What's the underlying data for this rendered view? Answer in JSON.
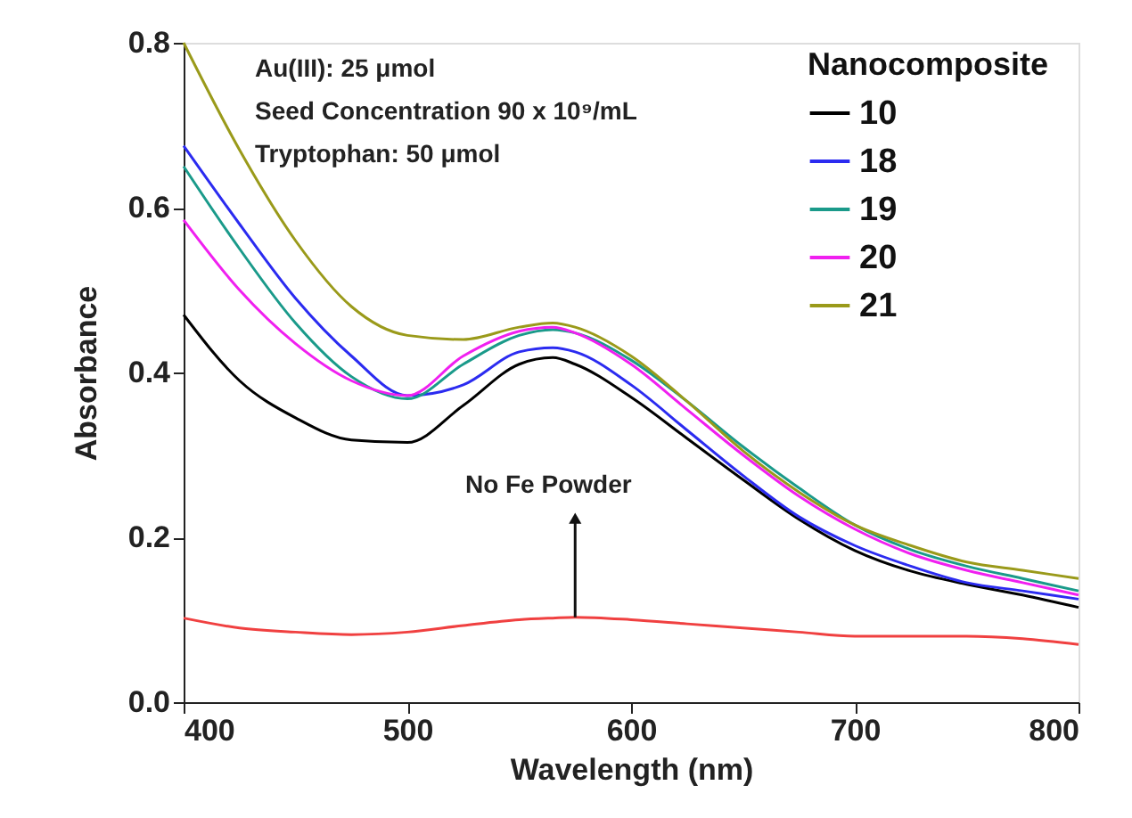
{
  "chart_data": {
    "type": "line",
    "xlabel": "Wavelength (nm)",
    "ylabel": "Absorbance",
    "legend_title": "Nanocomposite",
    "x": [
      400,
      425,
      450,
      475,
      500,
      525,
      550,
      565,
      575,
      600,
      625,
      650,
      675,
      700,
      725,
      750,
      775,
      800
    ],
    "series": [
      {
        "name": "10",
        "color": "#000000",
        "values": [
          0.47,
          0.39,
          0.345,
          0.318,
          0.315,
          0.36,
          0.41,
          0.418,
          0.41,
          0.37,
          0.32,
          0.27,
          0.222,
          0.184,
          0.159,
          0.143,
          0.13,
          0.115
        ]
      },
      {
        "name": "18",
        "color": "#2b2bf0",
        "values": [
          0.675,
          0.58,
          0.49,
          0.42,
          0.372,
          0.385,
          0.425,
          0.43,
          0.425,
          0.385,
          0.33,
          0.275,
          0.225,
          0.19,
          0.165,
          0.145,
          0.135,
          0.125
        ]
      },
      {
        "name": "19",
        "color": "#1a9a8a",
        "values": [
          0.65,
          0.55,
          0.46,
          0.395,
          0.368,
          0.41,
          0.445,
          0.452,
          0.448,
          0.415,
          0.365,
          0.31,
          0.26,
          0.215,
          0.185,
          0.165,
          0.15,
          0.135
        ]
      },
      {
        "name": "20",
        "color": "#f020f0",
        "values": [
          0.585,
          0.5,
          0.435,
          0.39,
          0.372,
          0.42,
          0.45,
          0.455,
          0.448,
          0.41,
          0.355,
          0.3,
          0.25,
          0.21,
          0.18,
          0.16,
          0.145,
          0.13
        ]
      },
      {
        "name": "21",
        "color": "#9a9a1a",
        "values": [
          0.8,
          0.67,
          0.56,
          0.48,
          0.445,
          0.44,
          0.455,
          0.46,
          0.455,
          0.42,
          0.365,
          0.305,
          0.255,
          0.215,
          0.19,
          0.17,
          0.16,
          0.15
        ]
      },
      {
        "color": "#f04040",
        "values": [
          0.102,
          0.09,
          0.085,
          0.082,
          0.085,
          0.093,
          0.1,
          0.102,
          0.103,
          0.1,
          0.095,
          0.09,
          0.085,
          0.08,
          0.08,
          0.08,
          0.077,
          0.07
        ]
      }
    ],
    "xlim": [
      400,
      800
    ],
    "xticks": [
      400,
      500,
      600,
      700,
      800
    ],
    "ylim": [
      0,
      0.8
    ],
    "yticks": [
      {
        "value": 0,
        "label": "0.0"
      },
      0.2,
      0.4,
      0.6,
      0.8
    ],
    "annotations": [
      "Au(III): 25 μmol",
      "Seed Concentration 90 x 10⁹/mL",
      "Tryptophan: 50 μmol",
      {
        "text": "No Fe Powder",
        "x": 575,
        "y": 0.103
      }
    ],
    "legend": "top right",
    "grid": false,
    "marker": "none",
    "line_style": "solid"
  }
}
